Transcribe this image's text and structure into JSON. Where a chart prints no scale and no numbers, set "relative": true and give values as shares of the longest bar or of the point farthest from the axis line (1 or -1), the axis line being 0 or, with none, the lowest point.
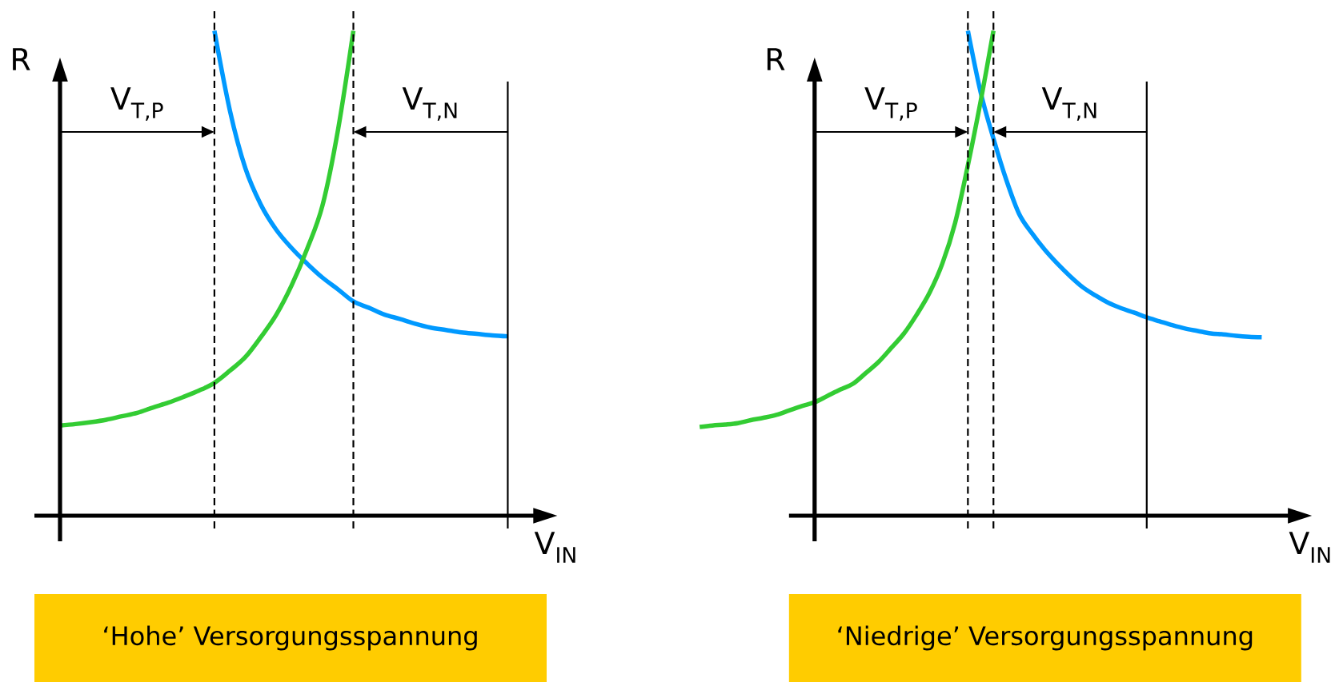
{
  "chart_data": [
    {
      "type": "line",
      "title": "‘Hohe’ Versorgungsspannung",
      "xlabel": "V$_{IN}$",
      "ylabel": "R",
      "relative": true,
      "categories": [
        null,
        null,
        null,
        null,
        null,
        null,
        null,
        null,
        null,
        null,
        null,
        null,
        null,
        null,
        null,
        null,
        null,
        null,
        null,
        null,
        null,
        null,
        null,
        null,
        null,
        null,
        null,
        null,
        null,
        null
      ],
      "series": [
        {
          "color": "#0099ff",
          "values": [
            null,
            null,
            null,
            null,
            null,
            null,
            null,
            null,
            null,
            null,
            1.0,
            0.836,
            0.717,
            0.642,
            0.59,
            0.552,
            0.52,
            0.491,
            0.467,
            0.442,
            0.429,
            0.415,
            0.406,
            0.396,
            0.388,
            0.383,
            0.378,
            0.375,
            0.372,
            0.37
          ]
        },
        {
          "color": "#33cc33",
          "values": [
            0.186,
            0.189,
            0.193,
            0.198,
            0.205,
            0.212,
            0.223,
            0.233,
            0.245,
            0.258,
            0.274,
            0.299,
            0.327,
            0.368,
            0.414,
            0.475,
            0.55,
            0.64,
            0.795,
            1.0,
            null,
            null,
            null,
            null,
            null,
            null,
            null,
            null,
            null,
            null
          ]
        }
      ],
      "annotations": [
        "V$_{T,P}$",
        "V$_{T,N}$"
      ]
    },
    {
      "type": "line",
      "title": "‘Niedrige’ Versorgungsspannung",
      "xlabel": "V$_{IN}$",
      "ylabel": "R",
      "relative": true,
      "categories": [
        null,
        null,
        null,
        null,
        null,
        null,
        null,
        null,
        null,
        null,
        null,
        null,
        null,
        null,
        null,
        null,
        null,
        null,
        null,
        null,
        null,
        null,
        null,
        null,
        null,
        null,
        null,
        null,
        null,
        null,
        null,
        null,
        null,
        null,
        null,
        null,
        null,
        null,
        null,
        null,
        null,
        null,
        null,
        null,
        null
      ],
      "series": [
        {
          "color": "#0099ff",
          "values": [
            null,
            null,
            null,
            null,
            null,
            null,
            null,
            null,
            null,
            null,
            null,
            null,
            null,
            null,
            null,
            null,
            null,
            null,
            null,
            null,
            null,
            1.0,
            0.873,
            0.778,
            0.693,
            0.623,
            0.583,
            0.549,
            0.52,
            0.494,
            0.471,
            0.454,
            0.439,
            0.428,
            0.419,
            0.409,
            0.401,
            0.393,
            0.386,
            0.381,
            0.376,
            0.374,
            0.371,
            0.369,
            0.368
          ]
        },
        {
          "color": "#33cc33",
          "values": [
            0.183,
            0.186,
            0.188,
            0.191,
            0.197,
            0.202,
            0.208,
            0.217,
            0.226,
            0.234,
            0.247,
            0.26,
            0.272,
            0.294,
            0.317,
            0.346,
            0.376,
            0.415,
            0.46,
            0.52,
            0.604,
            0.723,
            0.855,
            1.0,
            null,
            null,
            null,
            null,
            null,
            null,
            null,
            null,
            null,
            null,
            null,
            null,
            null,
            null,
            null,
            null,
            null,
            null,
            null,
            null,
            null
          ]
        }
      ],
      "annotations": [
        "V$_{T,P}$",
        "V$_{T,N}$"
      ]
    }
  ]
}
